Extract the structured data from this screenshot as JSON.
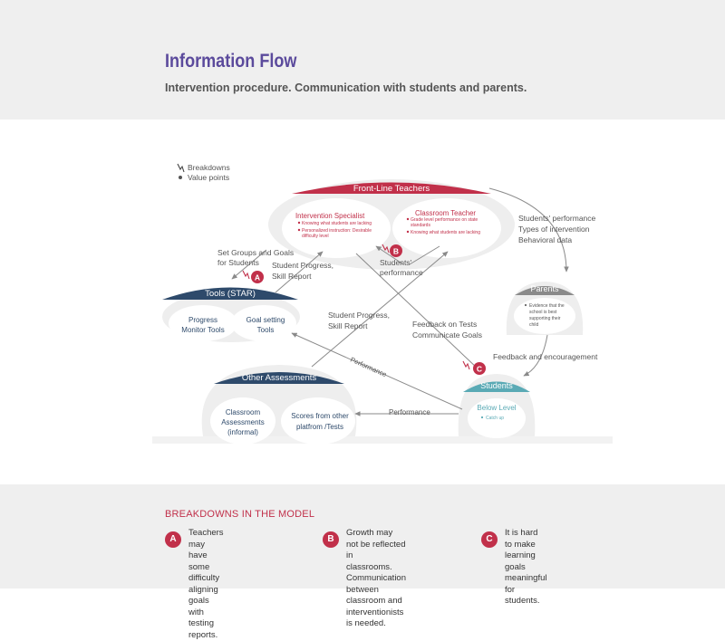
{
  "header": {
    "title": "Information Flow",
    "subtitle": "Intervention procedure. Communication with students and parents."
  },
  "legend": {
    "breakdowns": "Breakdowns",
    "value_points": "Value points"
  },
  "nodes": {
    "frontline": {
      "title": "Front-Line Teachers",
      "intervention": {
        "title": "Intervention Specialist",
        "bullets": [
          "Knowing what students are lacking",
          "Personalized instruction: Desirable",
          "difficulty level"
        ]
      },
      "classroom": {
        "title": "Classroom Teacher",
        "bullets": [
          "Grade level performance on state",
          "standards",
          "Knowing what students are lacking"
        ]
      }
    },
    "tools": {
      "title": "Tools  (STAR)",
      "progress_line1": "Progress",
      "progress_line2": "Monitor Tools",
      "goal_line1": "Goal setting",
      "goal_line2": "Tools"
    },
    "other": {
      "title": "Other Assessments",
      "classroom_line1": "Classroom",
      "classroom_line2": "Assessments",
      "classroom_line3": "(informal)",
      "scores_line1": "Scores from other",
      "scores_line2": "platfrom /Tests"
    },
    "parents": {
      "title": "Parents",
      "bullet_lines": [
        "Evidence that the",
        "school is best",
        "supporting their",
        "child"
      ]
    },
    "students": {
      "title": "Students",
      "below": "Below Level",
      "bullet": "Catch up"
    }
  },
  "flows": {
    "set_groups_1": "Set Groups and Goals",
    "set_groups_2": "for Students",
    "progress_1": "Student Progress,",
    "progress_2": "Skill Report",
    "students_perf_1": "Students'",
    "students_perf_2": "performance",
    "right_1": "Students' performance",
    "right_2": "Types of intervention",
    "right_3": "Behavioral data",
    "progress2_1": "Student Progress,",
    "progress2_2": "Skill Report",
    "feedback_1": "Feedback on Tests",
    "feedback_2": "Communicate Goals",
    "feedback_enc": "Feedback and encouragement",
    "performance_diag": "Performance",
    "performance_h": "Performance"
  },
  "markers": {
    "a": "A",
    "b": "B",
    "c": "C"
  },
  "breakdowns": {
    "heading": "BREAKDOWNS IN THE MODEL",
    "items": [
      {
        "letter": "A",
        "text": "Teachers may have some\ndifficulty aligning goals with\ntesting reports."
      },
      {
        "letter": "B",
        "text": "Growth may not be reflected in\nclassrooms. Communication\nbetween classroom and\ninterventionists is needed."
      },
      {
        "letter": "C",
        "text": "It is hard to make learning goals\nmeaningful for students."
      }
    ]
  },
  "colors": {
    "accent_red": "#c1304a",
    "navy": "#2e4a6b",
    "teal": "#5aaab5",
    "gray_header": "#8a8a8a",
    "purple_title": "#5b4a9c"
  }
}
